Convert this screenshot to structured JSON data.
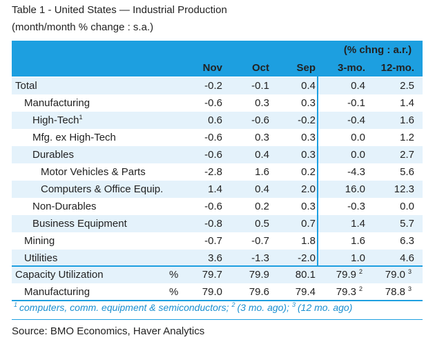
{
  "header": {
    "title": "Table 1 - United States — Industrial Production",
    "subtitle": "(month/month % change : s.a.)"
  },
  "table": {
    "group_header": "(% chng : a.r.)",
    "columns": [
      "Nov",
      "Oct",
      "Sep",
      "3-mo.",
      "12-mo."
    ],
    "rows": [
      {
        "label": "Total",
        "values": [
          "-0.2",
          "-0.1",
          "0.4",
          "0.4",
          "2.5"
        ]
      },
      {
        "label": "Manufacturing",
        "values": [
          "-0.6",
          "0.3",
          "0.3",
          "-0.1",
          "1.4"
        ]
      },
      {
        "label": "High-Tech",
        "note": "1",
        "values": [
          "0.6",
          "-0.6",
          "-0.2",
          "-0.4",
          "1.6"
        ]
      },
      {
        "label": "Mfg. ex High-Tech",
        "values": [
          "-0.6",
          "0.3",
          "0.3",
          "0.0",
          "1.2"
        ]
      },
      {
        "label": "Durables",
        "values": [
          "-0.6",
          "0.4",
          "0.3",
          "0.0",
          "2.7"
        ]
      },
      {
        "label": "Motor Vehicles & Parts",
        "values": [
          "-2.8",
          "1.6",
          "0.2",
          "-4.3",
          "5.6"
        ]
      },
      {
        "label": "Computers & Office Equip.",
        "values": [
          "1.4",
          "0.4",
          "2.0",
          "16.0",
          "12.3"
        ]
      },
      {
        "label": "Non-Durables",
        "values": [
          "-0.6",
          "0.2",
          "0.3",
          "-0.3",
          "0.0"
        ]
      },
      {
        "label": "Business Equipment",
        "values": [
          "-0.8",
          "0.5",
          "0.7",
          "1.4",
          "5.7"
        ]
      },
      {
        "label": "Mining",
        "values": [
          "-0.7",
          "-0.7",
          "1.8",
          "1.6",
          "6.3"
        ]
      },
      {
        "label": "Utilities",
        "values": [
          "3.6",
          "-1.3",
          "-2.0",
          "1.0",
          "4.6"
        ]
      }
    ],
    "capacity_rows": [
      {
        "label": "Capacity Utilization",
        "unit": "%",
        "values": [
          "79.7",
          "79.9",
          "80.1",
          "79.9",
          "79.0"
        ],
        "notes": [
          "2",
          "3"
        ]
      },
      {
        "label": "Manufacturing",
        "unit": "%",
        "values": [
          "79.0",
          "79.6",
          "79.4",
          "79.3",
          "78.8"
        ],
        "notes": [
          "2",
          "3"
        ]
      }
    ],
    "footnote": [
      {
        "mark": "1",
        "text": "computers, comm. equipment & semiconductors;"
      },
      {
        "mark": "2",
        "text": "(3 mo. ago);"
      },
      {
        "mark": "3",
        "text": "(12 mo. ago)"
      }
    ]
  },
  "source": "Source: BMO Economics, Haver Analytics"
}
